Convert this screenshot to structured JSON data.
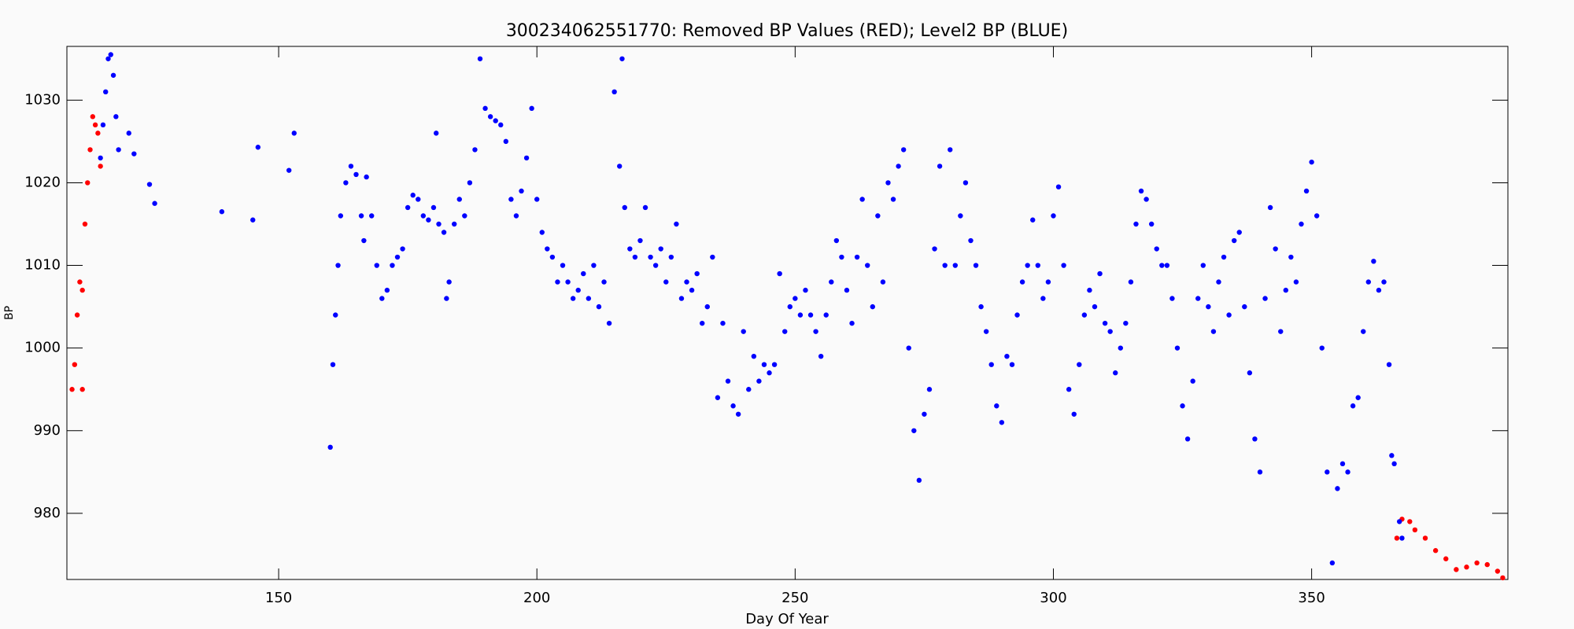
{
  "chart_data": {
    "type": "scatter",
    "title": "300234062551770: Removed BP Values (RED); Level2 BP (BLUE)",
    "x_label": "Day Of Year",
    "y_label": "BP",
    "xlim": [
      109,
      388
    ],
    "ylim": [
      972,
      1036.5
    ],
    "xticks": [
      150,
      200,
      250,
      300,
      350
    ],
    "yticks": [
      980,
      990,
      1000,
      1010,
      1020,
      1030
    ],
    "series": [
      {
        "color": "#ff0000",
        "x": [
          110,
          110.5,
          111,
          111.5,
          112,
          112,
          112.5,
          113,
          113.5,
          114,
          114.5,
          115,
          115.5,
          366.5,
          367.5,
          369,
          370,
          372,
          374,
          376,
          378,
          380,
          382,
          384,
          386,
          387
        ],
        "values": [
          995,
          998,
          1004,
          1008,
          1007,
          995,
          1015,
          1020,
          1024,
          1028,
          1027,
          1026,
          1022,
          977,
          979.3,
          979,
          978,
          977,
          975.5,
          974.5,
          973.2,
          973.5,
          974,
          973.8,
          973,
          972.2
        ]
      },
      {
        "color": "#0000ff",
        "x": [
          115.5,
          116,
          116.5,
          117,
          117.5,
          118,
          118.5,
          119,
          121,
          122,
          125,
          126,
          139,
          145,
          146,
          152,
          153,
          160,
          160.5,
          161,
          161.5,
          162,
          163,
          164,
          165,
          166,
          166.5,
          167,
          168,
          169,
          170,
          171,
          172,
          173,
          174,
          175,
          176,
          177,
          178,
          179,
          180,
          180.5,
          181,
          182,
          182.5,
          183,
          184,
          185,
          186,
          187,
          188,
          189,
          190,
          191,
          192,
          193,
          194,
          195,
          196,
          197,
          198,
          199,
          200,
          201,
          202,
          203,
          204,
          205,
          206,
          207,
          208,
          209,
          210,
          211,
          212,
          213,
          214,
          215,
          216,
          216.5,
          217,
          218,
          219,
          220,
          221,
          222,
          223,
          224,
          225,
          226,
          227,
          228,
          229,
          230,
          231,
          232,
          233,
          234,
          235,
          236,
          237,
          238,
          239,
          240,
          241,
          242,
          243,
          244,
          245,
          246,
          247,
          248,
          249,
          250,
          251,
          252,
          253,
          254,
          255,
          256,
          257,
          258,
          259,
          260,
          261,
          262,
          263,
          264,
          265,
          266,
          267,
          268,
          269,
          270,
          271,
          272,
          273,
          274,
          275,
          276,
          277,
          278,
          279,
          280,
          281,
          282,
          283,
          284,
          285,
          286,
          287,
          288,
          289,
          290,
          291,
          292,
          293,
          294,
          295,
          296,
          297,
          298,
          299,
          300,
          301,
          302,
          303,
          304,
          305,
          306,
          307,
          308,
          309,
          310,
          311,
          312,
          313,
          314,
          315,
          316,
          317,
          318,
          319,
          320,
          321,
          322,
          323,
          324,
          325,
          326,
          327,
          328,
          329,
          330,
          331,
          332,
          333,
          334,
          335,
          336,
          337,
          338,
          339,
          340,
          341,
          342,
          343,
          344,
          345,
          346,
          347,
          348,
          349,
          350,
          351,
          352,
          353,
          354,
          355,
          356,
          357,
          358,
          359,
          360,
          361,
          362,
          363,
          364,
          365,
          365.5,
          366,
          367,
          367.5
        ],
        "values": [
          1023,
          1027,
          1031,
          1035,
          1035.5,
          1033,
          1028,
          1024,
          1026,
          1023.5,
          1019.8,
          1017.5,
          1016.5,
          1015.5,
          1024.3,
          1021.5,
          1026,
          988,
          998,
          1004,
          1010,
          1016,
          1020,
          1022,
          1021,
          1016,
          1013,
          1020.7,
          1016,
          1010,
          1006,
          1007,
          1010,
          1011,
          1012,
          1017,
          1018.5,
          1018,
          1016,
          1015.5,
          1017,
          1026,
          1015,
          1014,
          1006,
          1008,
          1015,
          1018,
          1016,
          1020,
          1024,
          1035,
          1029,
          1028,
          1027.5,
          1027,
          1025,
          1018,
          1016,
          1019,
          1023,
          1029,
          1018,
          1014,
          1012,
          1011,
          1008,
          1010,
          1008,
          1006,
          1007,
          1009,
          1006,
          1010,
          1005,
          1008,
          1003,
          1031,
          1022,
          1035,
          1017,
          1012,
          1011,
          1013,
          1017,
          1011,
          1010,
          1012,
          1008,
          1011,
          1015,
          1006,
          1008,
          1007,
          1009,
          1003,
          1005,
          1011,
          994,
          1003,
          996,
          993,
          992,
          1002,
          995,
          999,
          996,
          998,
          997,
          998,
          1009,
          1002,
          1005,
          1006,
          1004,
          1007,
          1004,
          1002,
          999,
          1004,
          1008,
          1013,
          1011,
          1007,
          1003,
          1011,
          1018,
          1010,
          1005,
          1016,
          1008,
          1020,
          1018,
          1022,
          1024,
          1000,
          990,
          984,
          992,
          995,
          1012,
          1022,
          1010,
          1024,
          1010,
          1016,
          1020,
          1013,
          1010,
          1005,
          1002,
          998,
          993,
          991,
          999,
          998,
          1004,
          1008,
          1010,
          1015.5,
          1010,
          1006,
          1008,
          1016,
          1019.5,
          1010,
          995,
          992,
          998,
          1004,
          1007,
          1005,
          1009,
          1003,
          1002,
          997,
          1000,
          1003,
          1008,
          1015,
          1019,
          1018,
          1015,
          1012,
          1010,
          1010,
          1006,
          1000,
          993,
          989,
          996,
          1006,
          1010,
          1005,
          1002,
          1008,
          1011,
          1004,
          1013,
          1014,
          1005,
          997,
          989,
          985,
          1006,
          1017,
          1012,
          1002,
          1007,
          1011,
          1008,
          1015,
          1019,
          1022.5,
          1016,
          1000,
          985,
          974,
          983,
          986,
          985,
          993,
          994,
          1002,
          1008,
          1010.5,
          1007,
          1008,
          998,
          987,
          986,
          979,
          977
        ]
      }
    ]
  }
}
